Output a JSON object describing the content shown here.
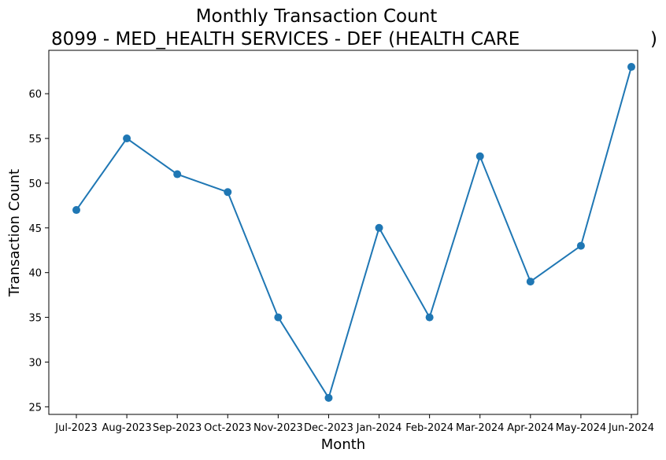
{
  "chart_data": {
    "type": "line",
    "title": "Monthly Transaction Count",
    "subtitle": "8099 - MED_HEALTH SERVICES - DEF (HEALTH CARE",
    "subtitle_end": ")",
    "xlabel": "Month",
    "ylabel": "Transaction Count",
    "categories": [
      "Jul-2023",
      "Aug-2023",
      "Sep-2023",
      "Oct-2023",
      "Nov-2023",
      "Dec-2023",
      "Jan-2024",
      "Feb-2024",
      "Mar-2024",
      "Apr-2024",
      "May-2024",
      "Jun-2024"
    ],
    "series": [
      {
        "values": [
          47,
          55,
          51,
          49,
          35,
          26,
          45,
          35,
          53,
          39,
          43,
          63
        ]
      }
    ],
    "yticks": [
      25,
      30,
      35,
      40,
      45,
      50,
      55,
      60
    ],
    "ylim": [
      24.15,
      64.85
    ],
    "grid": false,
    "legend": "none",
    "marker": "circle",
    "color": "#1f77b4"
  }
}
